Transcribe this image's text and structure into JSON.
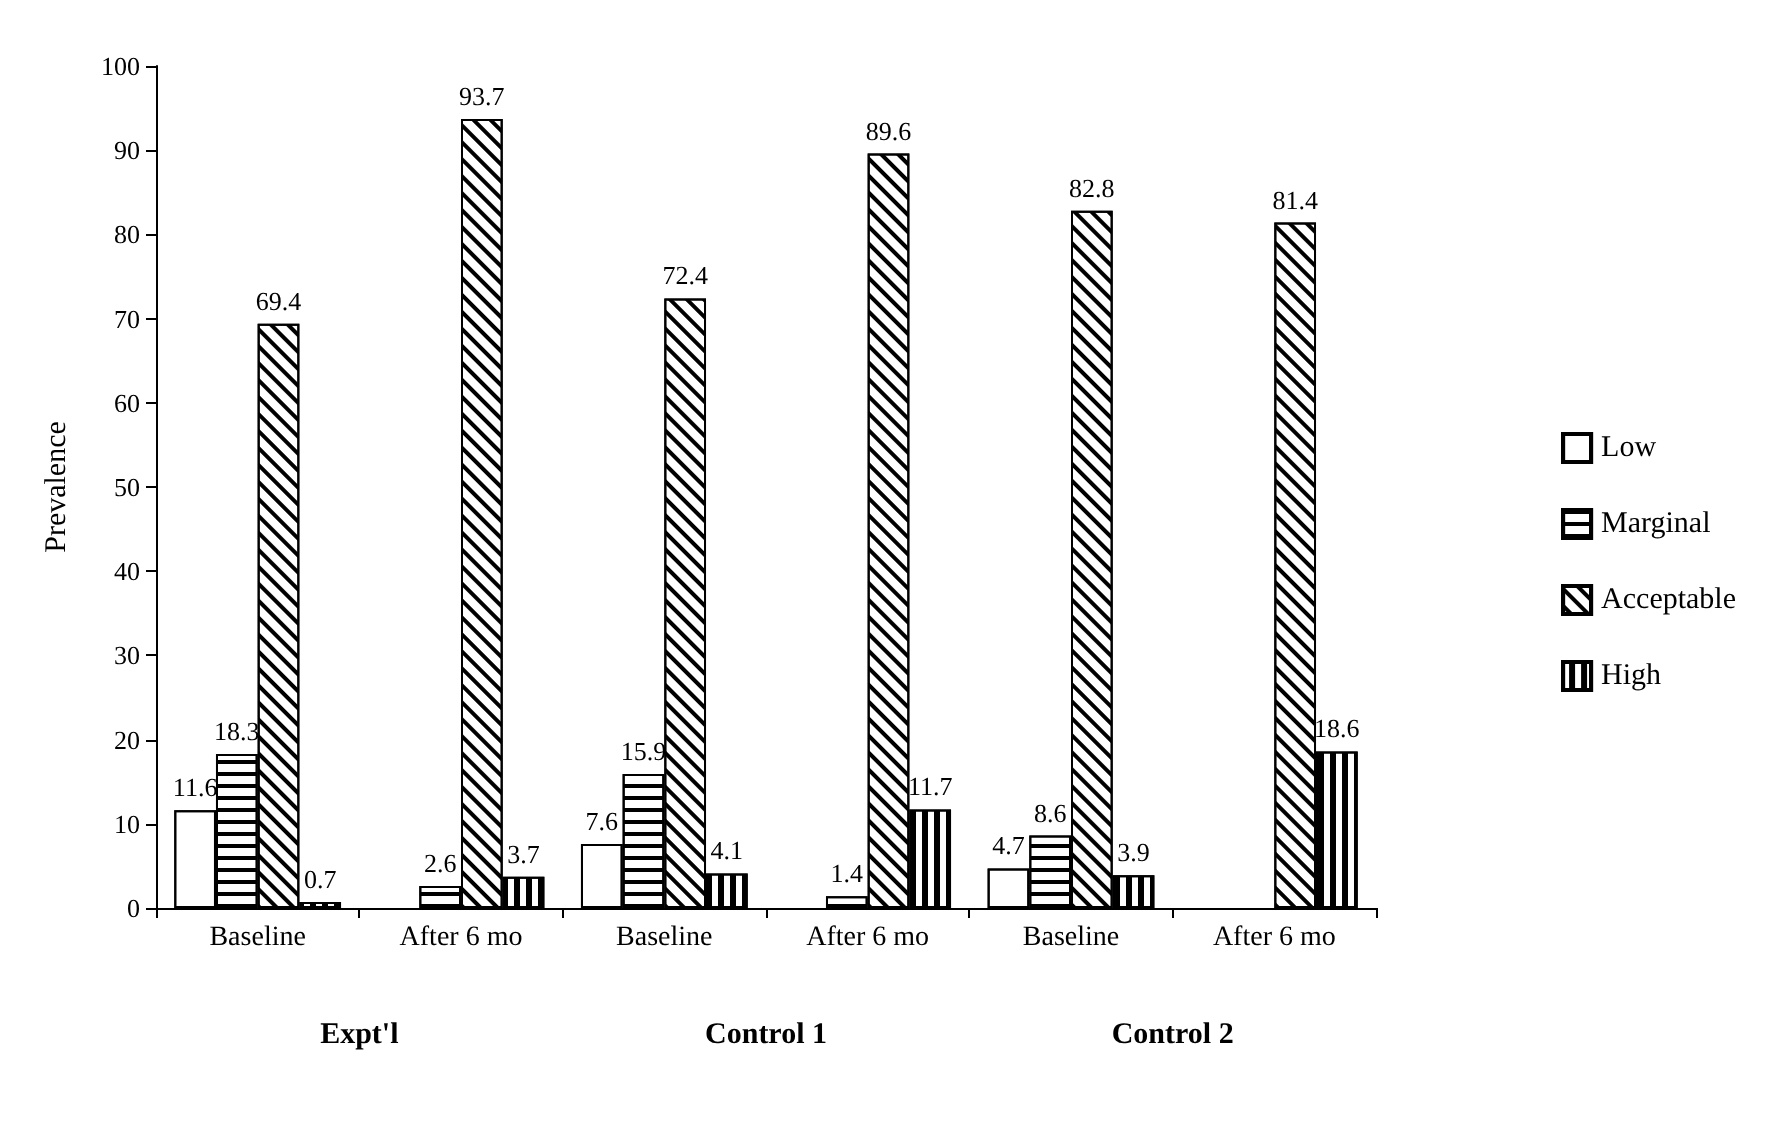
{
  "chart_data": {
    "type": "bar",
    "ylabel": "Prevalence",
    "categories": [
      "Baseline",
      "After 6 mo",
      "Baseline",
      "After 6 mo",
      "Baseline",
      "After 6 mo"
    ],
    "series": [
      {
        "name": "Low",
        "color": "#ffffff",
        "values": [
          11.6,
          null,
          7.6,
          null,
          4.7,
          null
        ]
      },
      {
        "name": "Marginal",
        "color": "#ffffff",
        "values": [
          18.3,
          2.6,
          15.9,
          1.4,
          8.6,
          null
        ]
      },
      {
        "name": "Acceptable",
        "color": "#ffffff",
        "values": [
          69.4,
          93.7,
          72.4,
          89.6,
          82.8,
          81.4
        ]
      },
      {
        "name": "High",
        "color": "#ffffff",
        "values": [
          0.7,
          3.7,
          4.1,
          11.7,
          3.9,
          18.6
        ]
      }
    ],
    "ylim": [
      0,
      100
    ],
    "yticks": [
      0,
      10,
      20,
      30,
      40,
      50,
      60,
      70,
      80,
      90,
      100
    ],
    "data_labels": true,
    "legend": "right",
    "grid": false,
    "annotations": [
      "Expt'l",
      "Control 1",
      "Control 2"
    ]
  }
}
